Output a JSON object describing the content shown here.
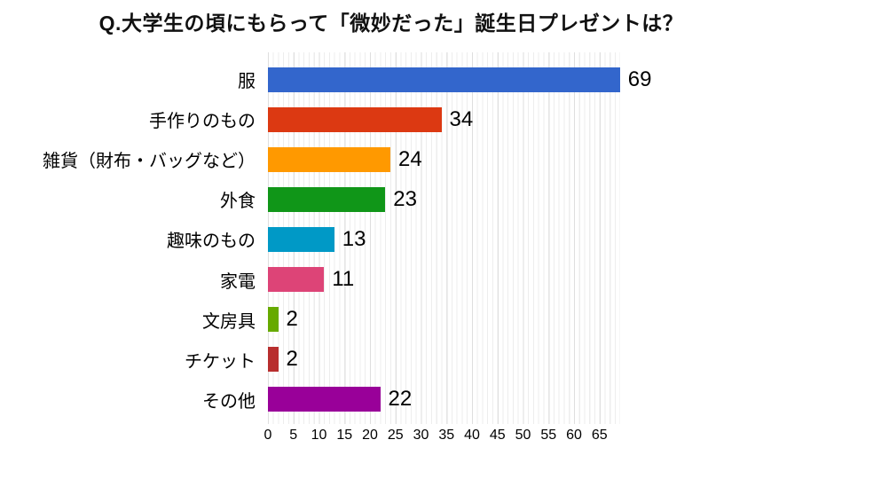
{
  "title": "Q.大学生の頃にもらって「微妙だった」誕生日プレゼントは？",
  "chart_data": {
    "type": "bar",
    "orientation": "horizontal",
    "title": "Q.大学生の頃にもらって「微妙だった」誕生日プレゼントは？",
    "categories": [
      "服",
      "手作りのもの",
      "雑貨（財布・バッグなど）",
      "外食",
      "趣味のもの",
      "家電",
      "文房具",
      "チケット",
      "その他"
    ],
    "values": [
      69,
      34,
      24,
      23,
      13,
      11,
      2,
      2,
      22
    ],
    "value_labels": [
      "69",
      "34",
      "24",
      "23",
      "13",
      "11",
      "2",
      "2",
      "22"
    ],
    "bar_colors": [
      "#3366CC",
      "#DC3912",
      "#FF9900",
      "#109618",
      "#0099C6",
      "#DD4477",
      "#66AA00",
      "#B82E2E",
      "#990099"
    ],
    "xlabel": "",
    "ylabel": "",
    "xlim": [
      0,
      69
    ],
    "x_ticks": [
      0,
      5,
      10,
      15,
      20,
      25,
      30,
      35,
      40,
      45,
      50,
      55,
      60,
      65
    ],
    "grid": "vertical minor gridlines every 1 unit, light gray",
    "legend": "none",
    "background_color": "#ffffff",
    "text_color": "#000000"
  }
}
